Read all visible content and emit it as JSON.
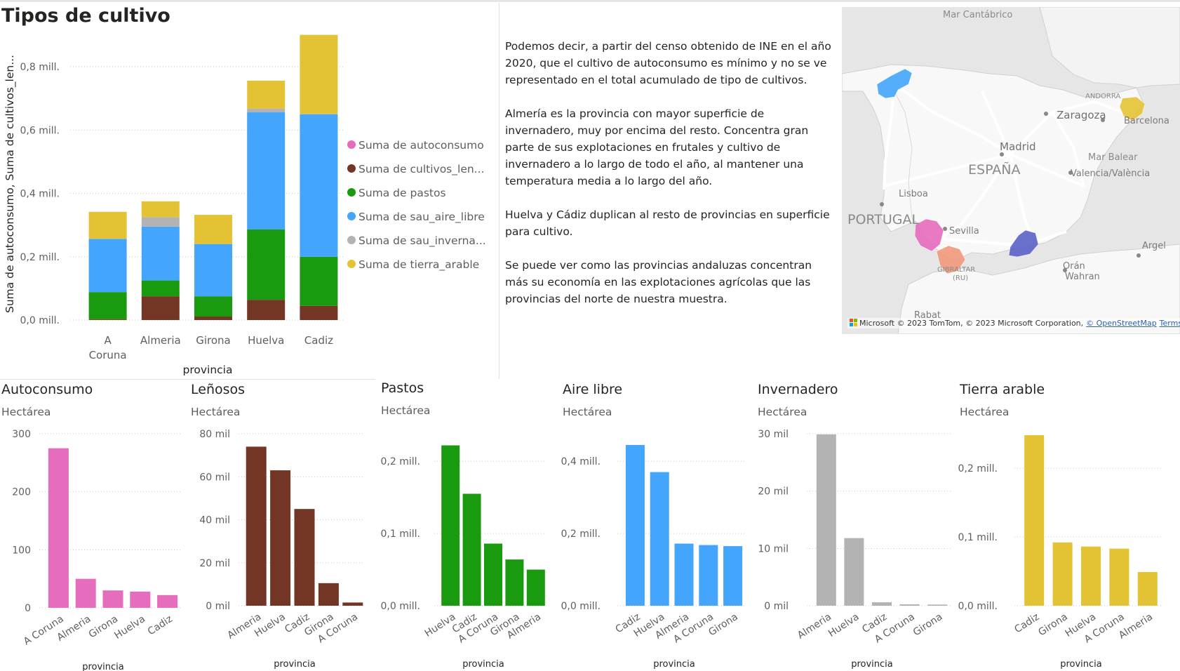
{
  "chart_data": [
    {
      "id": "main",
      "type": "bar",
      "stacked": true,
      "title": "Tipos de cultivo",
      "xlabel": "provincia",
      "ylabel": "Suma de autoconsumo, Suma de cultivos_len...",
      "categories": [
        "A Coruna",
        "Almeria",
        "Girona",
        "Huelva",
        "Cadiz"
      ],
      "category_labels": [
        [
          "A",
          "Coruna"
        ],
        [
          "Almeria"
        ],
        [
          "Girona"
        ],
        [
          "Huelva"
        ],
        [
          "Cadiz"
        ]
      ],
      "ylim": [
        0,
        0.9
      ],
      "yticks": [
        0,
        0.2,
        0.4,
        0.6,
        0.8
      ],
      "ytick_labels": [
        "0,0 mill.",
        "0,2 mill.",
        "0,4 mill.",
        "0,6 mill.",
        "0,8 mill."
      ],
      "grid": true,
      "legend_position": "right",
      "series": [
        {
          "name": "Suma de autoconsumo",
          "color": "#e66cbd",
          "values": [
            0.0003,
            5e-05,
            3e-05,
            3e-05,
            2e-05
          ]
        },
        {
          "name": "Suma de cultivos_len...",
          "color": "#743624",
          "values": [
            0.002,
            0.075,
            0.011,
            0.064,
            0.045
          ]
        },
        {
          "name": "Suma de pastos",
          "color": "#1a9a0f",
          "values": [
            0.086,
            0.05,
            0.064,
            0.222,
            0.155
          ]
        },
        {
          "name": "Suma de sau_aire_libre",
          "color": "#43a5fb",
          "values": [
            0.168,
            0.17,
            0.165,
            0.37,
            0.45
          ]
        },
        {
          "name": "Suma de sau_inverna...",
          "color": "#b3b3b3",
          "values": [
            0.0004,
            0.03,
            0.0003,
            0.012,
            0.0008
          ]
        },
        {
          "name": "Suma de tierra_arable",
          "color": "#e3c333",
          "values": [
            0.085,
            0.05,
            0.092,
            0.088,
            0.25
          ]
        }
      ]
    },
    {
      "id": "autoconsumo",
      "type": "bar",
      "title": "Autoconsumo",
      "subtitle": "Hectárea",
      "xlabel": "provincia",
      "color": "#e66cbd",
      "categories": [
        "A Coruna",
        "Almeria",
        "Girona",
        "Huelva",
        "Cadiz"
      ],
      "values": [
        275,
        50,
        30,
        28,
        22
      ],
      "ylim": [
        0,
        300
      ],
      "yticks": [
        0,
        100,
        200,
        300
      ],
      "ytick_labels": [
        "0",
        "100",
        "200",
        "300"
      ]
    },
    {
      "id": "lenosos",
      "type": "bar",
      "title": "Leñosos",
      "subtitle": "Hectárea",
      "xlabel": "provincia",
      "color": "#743624",
      "categories": [
        "Almeria",
        "Huelva",
        "Cadiz",
        "Girona",
        "A Coruna"
      ],
      "values": [
        74000,
        63000,
        45000,
        10500,
        1500
      ],
      "ylim": [
        0,
        80000
      ],
      "yticks": [
        0,
        20000,
        40000,
        60000,
        80000
      ],
      "ytick_labels": [
        "0 mil",
        "20 mil",
        "40 mil",
        "60 mil",
        "80 mil"
      ]
    },
    {
      "id": "pastos",
      "type": "bar",
      "title": "Pastos",
      "subtitle": "Hectárea",
      "xlabel": "provincia",
      "color": "#1a9a0f",
      "categories": [
        "Huelva",
        "Cadiz",
        "A Coruna",
        "Girona",
        "Almeria"
      ],
      "values": [
        222000,
        155000,
        86000,
        64000,
        50000
      ],
      "ylim": [
        0,
        240000
      ],
      "yticks": [
        0,
        100000,
        200000
      ],
      "ytick_labels": [
        "0,0 mill.",
        "0,1 mill.",
        "0,2 mill."
      ]
    },
    {
      "id": "aire-libre",
      "type": "bar",
      "title": "Aire libre",
      "subtitle": "Hectárea",
      "xlabel": "provincia",
      "color": "#43a5fb",
      "categories": [
        "Cadiz",
        "Huelva",
        "Almeria",
        "A Coruna",
        "Girona"
      ],
      "values": [
        445000,
        370000,
        172000,
        168000,
        165000
      ],
      "ylim": [
        0,
        480000
      ],
      "yticks": [
        0,
        200000,
        400000
      ],
      "ytick_labels": [
        "0,0 mill.",
        "0,2 mill.",
        "0,4 mill."
      ]
    },
    {
      "id": "invernadero",
      "type": "bar",
      "title": "Invernadero",
      "subtitle": "Hectárea",
      "xlabel": "provincia",
      "color": "#b3b3b3",
      "categories": [
        "Almeria",
        "Huelva",
        "Cadiz",
        "A Coruna",
        "Girona"
      ],
      "values": [
        29900,
        11800,
        600,
        250,
        200
      ],
      "ylim": [
        0,
        30000
      ],
      "yticks": [
        0,
        10000,
        20000,
        30000
      ],
      "ytick_labels": [
        "0 mil",
        "10 mil",
        "20 mil",
        "30 mil"
      ]
    },
    {
      "id": "tierra-arable",
      "type": "bar",
      "title": "Tierra arable",
      "subtitle": "Hectárea",
      "xlabel": "provincia",
      "color": "#e3c333",
      "categories": [
        "Cadiz",
        "Girona",
        "Huelva",
        "A Coruna",
        "Almeria"
      ],
      "values": [
        248000,
        92000,
        86000,
        83000,
        49000
      ],
      "ylim": [
        0,
        250000
      ],
      "yticks": [
        0,
        100000,
        200000
      ],
      "ytick_labels": [
        "0,0 mill.",
        "0,1 mill.",
        "0,2 mill."
      ]
    }
  ],
  "narrative": {
    "p1": "Podemos decir, a partir del censo obtenido de INE en el año 2020, que el cultivo de autoconsumo es mínimo y no se ve representado en el total acumulado de tipo de cultivos.",
    "p2": "Almería es la provincia con mayor superficie de invernadero, muy por encima del resto. Concentra gran parte de sus explotaciones en frutales y cultivo de invernadero a lo largo de todo el año, al mantener una temperatura media a lo largo del año.",
    "p3": "Huelva y Cádiz duplican al resto de provincias en superficie para cultivo.",
    "p4": "Se puede ver como las provincias andaluzas concentran más su economía en las explotaciones agrícolas que las provincias del norte de nuestra muestra."
  },
  "map": {
    "labels": {
      "cantabrico": "Mar Cantábrico",
      "andorra": "ANDORRA",
      "zaragoza": "Zaragoza",
      "barcelona": "Barcelona",
      "madrid": "Madrid",
      "espana": "ESPAÑA",
      "mar_balear": "Mar Balear",
      "valencia": "Valencia/València",
      "lisboa": "Lisboa",
      "portugal": "PORTUGAL",
      "sevilla": "Sevilla",
      "gibraltar": "GIBRALTAR",
      "uk": "(RU)",
      "argel": "Argel",
      "oran": "Orán",
      "wahran": "Wahran",
      "rabat": "Rabat"
    },
    "credit_logo": "Microsoft",
    "credit": "© 2023 TomTom, © 2023 Microsoft Corporation,",
    "osm": "© OpenStreetMap",
    "terms": "Terms",
    "region_colors": {
      "coruna": "#43a5fb",
      "girona": "#e3c333",
      "huelva": "#e66cbd",
      "cadiz": "#f0987a",
      "almeria": "#5a62c7"
    }
  }
}
